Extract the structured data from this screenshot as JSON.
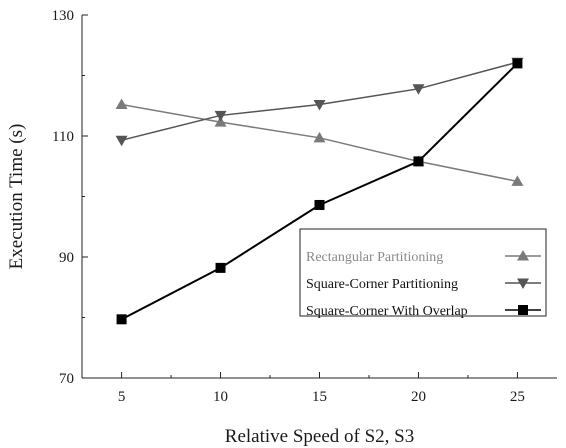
{
  "chart_data": {
    "type": "line",
    "title": "",
    "xlabel": "Relative Speed of S2, S3",
    "ylabel": "Execution Time (s)",
    "x": [
      5,
      10,
      15,
      20,
      25
    ],
    "xlim": [
      3,
      27
    ],
    "ylim": [
      70,
      130
    ],
    "xticks": [
      "5",
      "10",
      "15",
      "20",
      "25"
    ],
    "yticks": [
      "70",
      "90",
      "110",
      "130"
    ],
    "grid": false,
    "legend_position": "lower-right",
    "series": [
      {
        "name": "Rectangular Partitioning",
        "values": [
          115.2,
          112.3,
          109.7,
          105.8,
          102.5
        ],
        "color": "#7a7a7a",
        "marker": "triangle-up"
      },
      {
        "name": "Square-Corner Partitioning",
        "values": [
          109.3,
          113.4,
          115.2,
          117.8,
          122.2
        ],
        "color": "#555555",
        "marker": "triangle-down"
      },
      {
        "name": "Square-Corner With Overlap",
        "values": [
          79.7,
          88.2,
          98.6,
          105.8,
          122.0
        ],
        "color": "#000000",
        "marker": "square"
      }
    ]
  }
}
